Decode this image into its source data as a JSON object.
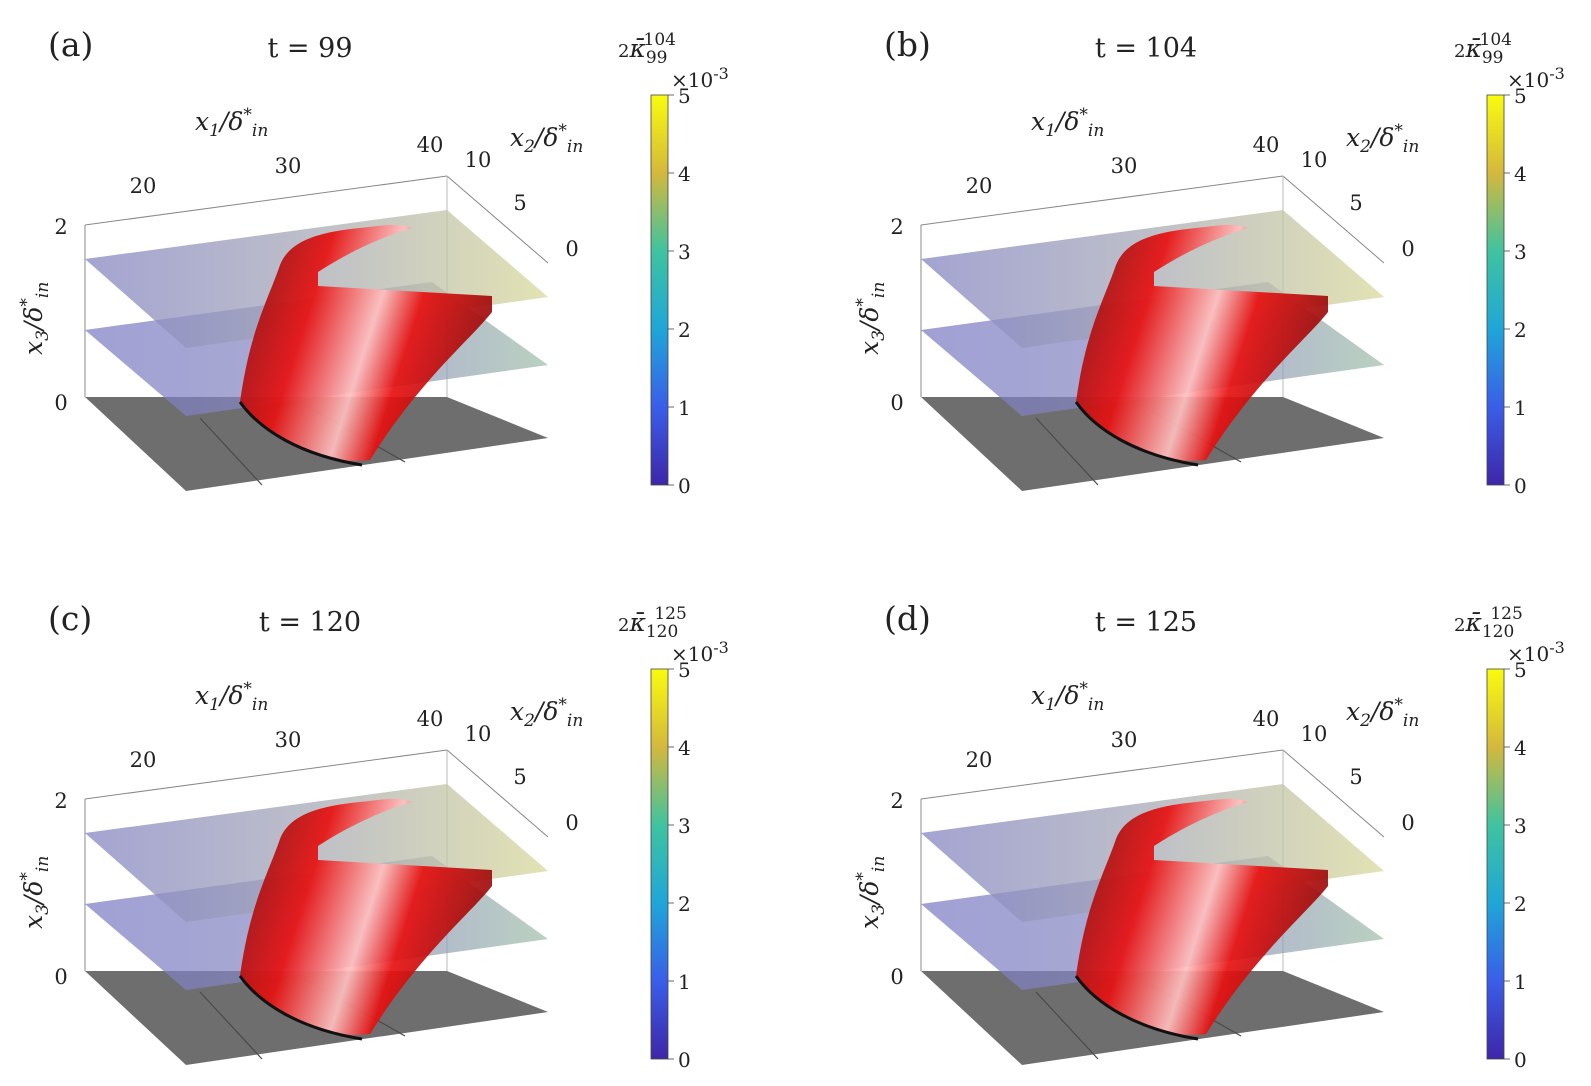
{
  "figure": {
    "panels": [
      {
        "label": "(a)",
        "title": "t = 99",
        "cb_label": "2κ̄99 104"
      },
      {
        "label": "(b)",
        "title": "t = 104",
        "cb_label": "2κ̄99 104"
      },
      {
        "label": "(c)",
        "title": "t = 120",
        "cb_label": "2κ̄120 125"
      },
      {
        "label": "(d)",
        "title": "t = 125",
        "cb_label": "2κ̄120 125"
      }
    ],
    "axes": {
      "x1_label": "x1/δ*in",
      "x2_label": "x2/δ*in",
      "x3_label": "x3/δ*in",
      "x1_ticks": [
        "20",
        "30",
        "40"
      ],
      "x2_ticks": [
        "10",
        "5",
        "0"
      ],
      "x3_ticks": [
        "2",
        "0"
      ]
    },
    "colorbar": {
      "exponent": "×10-3",
      "ticks": [
        "5",
        "4",
        "3",
        "2",
        "1",
        "0"
      ],
      "range": [
        0,
        5
      ],
      "colors": [
        "#3e26a8",
        "#2e8af0",
        "#1fbfb0",
        "#86c957",
        "#f0ba36",
        "#f9fb0e"
      ]
    },
    "colors": {
      "vortex": "#e81010",
      "floor": "#6e6e6e",
      "plane_low": "#8585c2",
      "plane_high": "#d9d99a"
    }
  }
}
